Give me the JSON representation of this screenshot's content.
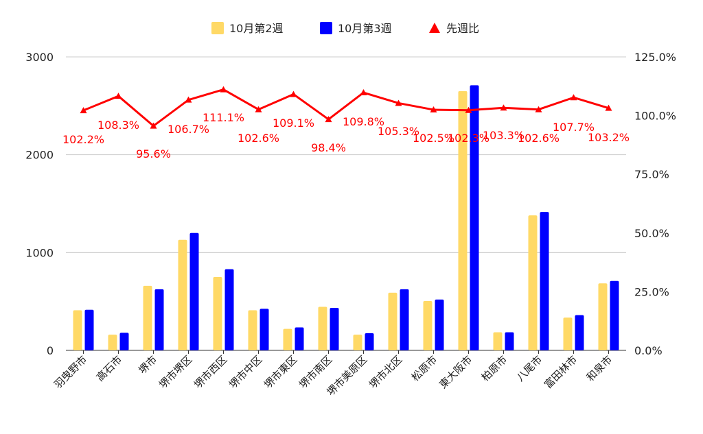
{
  "chart_data": {
    "type": "bar",
    "categories": [
      "羽曳野市",
      "高石市",
      "堺市",
      "堺市堺区",
      "堺市西区",
      "堺市中区",
      "堺市東区",
      "堺市南区",
      "堺市美原区",
      "堺市北区",
      "松原市",
      "東大阪市",
      "柏原市",
      "八尾市",
      "富田林市",
      "和泉市"
    ],
    "series": [
      {
        "name": "10月第2週",
        "color": "#ffd966",
        "values": [
          410,
          160,
          660,
          1130,
          750,
          410,
          220,
          445,
          160,
          590,
          505,
          2650,
          185,
          1380,
          335,
          685
        ]
      },
      {
        "name": "10月第3週",
        "color": "#0000ff",
        "values": [
          415,
          180,
          625,
          1200,
          830,
          425,
          235,
          435,
          175,
          625,
          520,
          2710,
          185,
          1415,
          360,
          710
        ]
      }
    ],
    "line_series": {
      "name": "先週比",
      "color": "#ff0000",
      "axis": "right",
      "values": [
        102.2,
        108.3,
        95.6,
        106.7,
        111.1,
        102.6,
        109.1,
        98.4,
        109.8,
        105.3,
        102.5,
        102.3,
        103.3,
        102.6,
        107.7,
        103.2
      ],
      "labels": [
        "102.2%",
        "108.3%",
        "95.6%",
        "106.7%",
        "111.1%",
        "102.6%",
        "109.1%",
        "98.4%",
        "109.8%",
        "105.3%",
        "102.5%",
        "102.3%",
        "103.3%",
        "102.6%",
        "107.7%",
        "103.2%"
      ]
    },
    "y_left": {
      "min": 0,
      "max": 3000,
      "ticks": [
        0,
        1000,
        2000,
        3000
      ],
      "tick_labels": [
        "0",
        "1000",
        "2000",
        "3000"
      ]
    },
    "y_right": {
      "min": 0,
      "max": 125,
      "ticks": [
        0,
        25,
        50,
        75,
        100,
        125
      ],
      "tick_labels": [
        "0.0%",
        "25.0%",
        "50.0%",
        "75.0%",
        "100.0%",
        "125.0%"
      ]
    },
    "grid": true,
    "legend_position": "top",
    "title": "",
    "xlabel": "",
    "ylabel": ""
  }
}
